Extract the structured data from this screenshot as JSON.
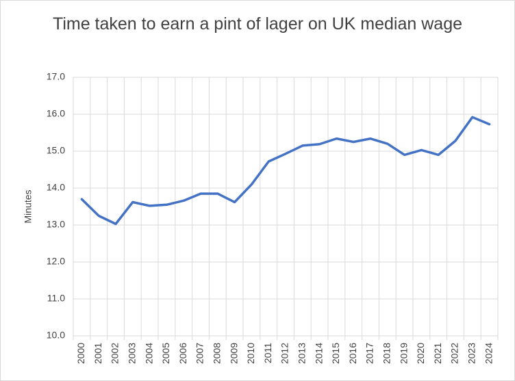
{
  "chart_data": {
    "type": "line",
    "title": "Time taken to earn a pint of lager on UK median wage",
    "y_label": "Minutes",
    "categories": [
      "2000",
      "2001",
      "2002",
      "2003",
      "2004",
      "2005",
      "2006",
      "2007",
      "2008",
      "2009",
      "2010",
      "2011",
      "2012",
      "2013",
      "2014",
      "2015",
      "2016",
      "2017",
      "2018",
      "2019",
      "2020",
      "2021",
      "2022",
      "2023",
      "2024"
    ],
    "values": [
      13.7,
      13.25,
      13.03,
      13.62,
      13.52,
      13.55,
      13.66,
      13.85,
      13.85,
      13.62,
      14.1,
      14.72,
      14.93,
      15.15,
      15.19,
      15.34,
      15.25,
      15.34,
      15.2,
      14.9,
      15.03,
      14.9,
      15.28,
      15.92,
      15.73
    ],
    "color": "#4472c4",
    "ylim": [
      10,
      17
    ],
    "yticks": [
      {
        "value": 10,
        "label": "10.0"
      },
      {
        "value": 11,
        "label": "11.0"
      },
      {
        "value": 12,
        "label": "12.0"
      },
      {
        "value": 13,
        "label": "13.0"
      },
      {
        "value": 14,
        "label": "14.0"
      },
      {
        "value": 15,
        "label": "15.0"
      },
      {
        "value": 16,
        "label": "16.0"
      },
      {
        "value": 17,
        "label": "17.0"
      }
    ],
    "grid": true
  }
}
